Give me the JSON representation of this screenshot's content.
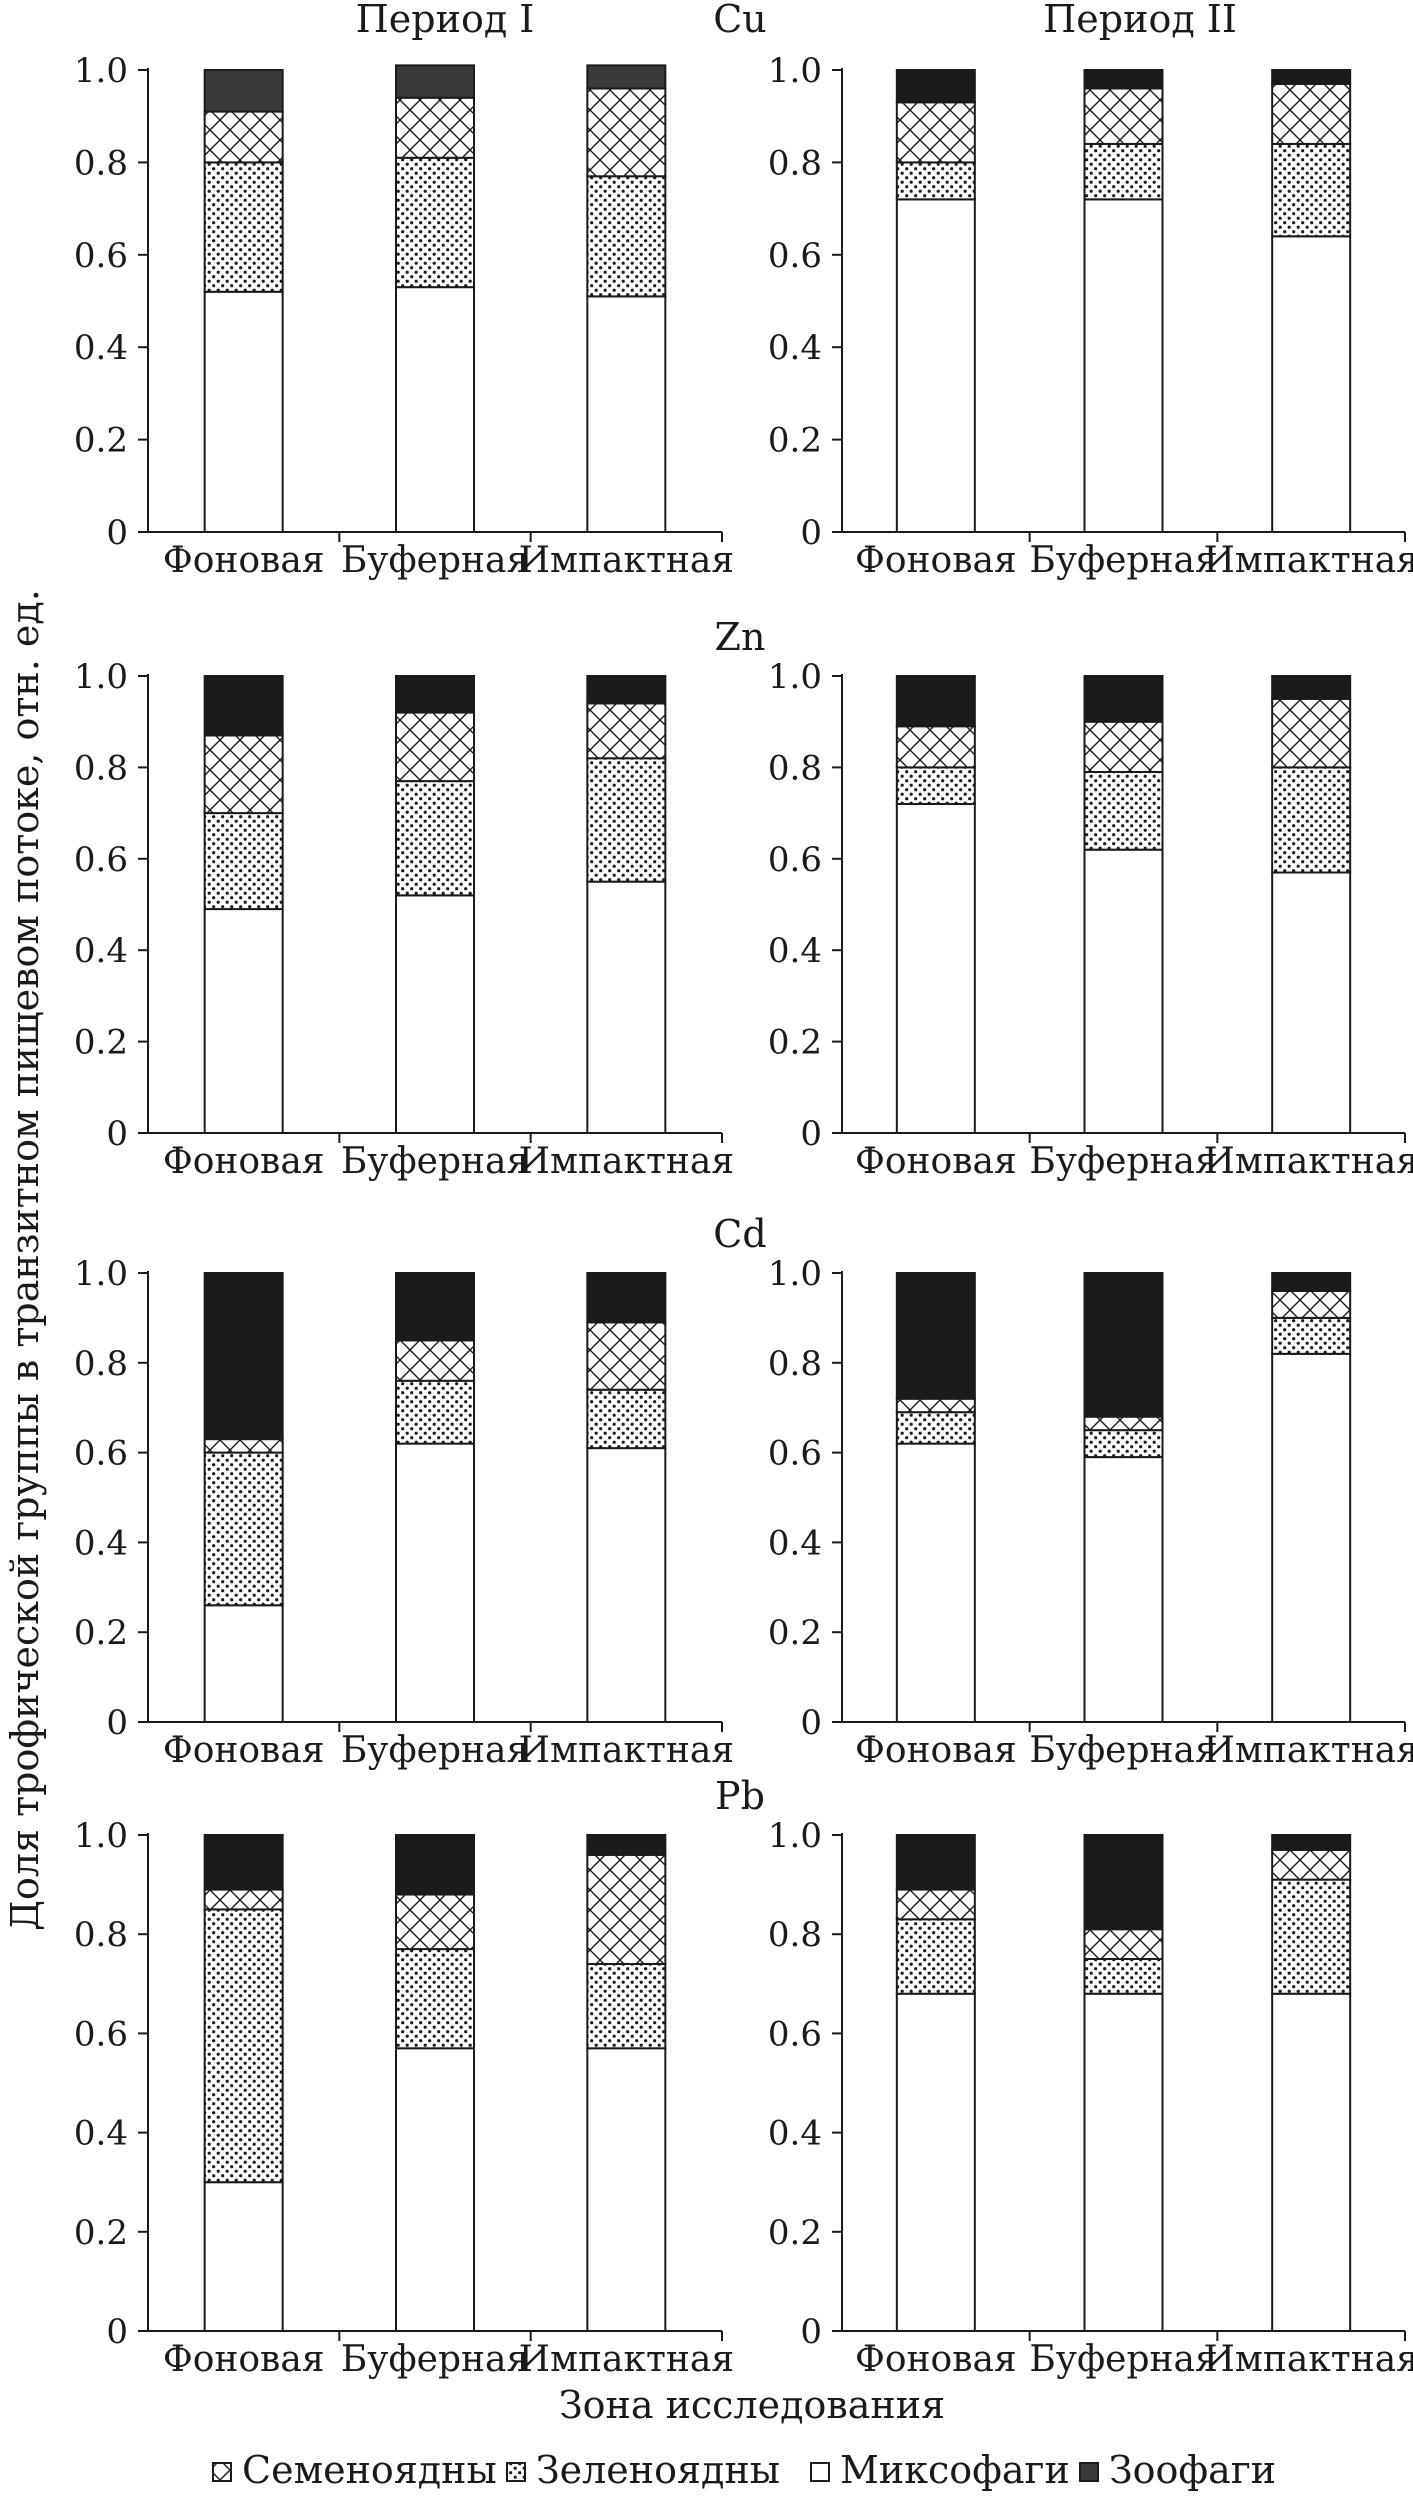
{
  "figure": {
    "period_labels": [
      "Период I",
      "Период II"
    ],
    "y_axis_title": "Доля трофической группы в транзитном пищевом потоке, отн. ед.",
    "x_axis_title": "Зона исследования",
    "legend": [
      {
        "key": "seeds",
        "label": "Семеноядны",
        "pattern": "crosshatch"
      },
      {
        "key": "green",
        "label": "Зеленоядны",
        "pattern": "dots"
      },
      {
        "key": "mixo",
        "label": "Миксофаги",
        "pattern": "white"
      },
      {
        "key": "zoo",
        "label": "Зоофаги",
        "pattern": "dark"
      }
    ],
    "colors": {
      "dark": "#1b1b1b",
      "dark_grey": "#3a3a3a",
      "outline": "#1a1a1a",
      "background": "#ffffff"
    }
  },
  "chart_data": [
    {
      "type": "bar",
      "stacked": true,
      "element": "Cu",
      "period": "Период I",
      "categories": [
        "Фоновая",
        "Буферная",
        "Импактная"
      ],
      "yticks": [
        "0",
        "0.2",
        "0.4",
        "0.6",
        "0.8",
        "1.0"
      ],
      "ylim": [
        0,
        1
      ],
      "series": [
        {
          "name": "Миксофаги",
          "values": [
            0.52,
            0.53,
            0.51
          ]
        },
        {
          "name": "Зеленоядны",
          "values": [
            0.28,
            0.28,
            0.26
          ]
        },
        {
          "name": "Семеноядны",
          "values": [
            0.11,
            0.13,
            0.19
          ]
        },
        {
          "name": "Зоофаги",
          "values": [
            0.09,
            0.07,
            0.05
          ]
        }
      ]
    },
    {
      "type": "bar",
      "stacked": true,
      "element": "Cu",
      "period": "Период II",
      "categories": [
        "Фоновая",
        "Буферная",
        "Импактная"
      ],
      "yticks": [
        "0",
        "0.2",
        "0.4",
        "0.6",
        "0.8",
        "1.0"
      ],
      "ylim": [
        0,
        1
      ],
      "series": [
        {
          "name": "Миксофаги",
          "values": [
            0.72,
            0.72,
            0.64
          ]
        },
        {
          "name": "Зеленоядны",
          "values": [
            0.08,
            0.12,
            0.2
          ]
        },
        {
          "name": "Семеноядны",
          "values": [
            0.13,
            0.12,
            0.13
          ]
        },
        {
          "name": "Зоофаги",
          "values": [
            0.07,
            0.04,
            0.03
          ]
        }
      ]
    },
    {
      "type": "bar",
      "stacked": true,
      "element": "Zn",
      "period": "Период I",
      "categories": [
        "Фоновая",
        "Буферная",
        "Импактная"
      ],
      "yticks": [
        "0",
        "0.2",
        "0.4",
        "0.6",
        "0.8",
        "1.0"
      ],
      "ylim": [
        0,
        1
      ],
      "series": [
        {
          "name": "Миксофаги",
          "values": [
            0.49,
            0.52,
            0.55
          ]
        },
        {
          "name": "Зеленоядны",
          "values": [
            0.21,
            0.25,
            0.27
          ]
        },
        {
          "name": "Семеноядны",
          "values": [
            0.17,
            0.15,
            0.12
          ]
        },
        {
          "name": "Зоофаги",
          "values": [
            0.13,
            0.08,
            0.06
          ]
        }
      ]
    },
    {
      "type": "bar",
      "stacked": true,
      "element": "Zn",
      "period": "Период II",
      "categories": [
        "Фоновая",
        "Буферная",
        "Импактная"
      ],
      "yticks": [
        "0",
        "0.2",
        "0.4",
        "0.6",
        "0.8",
        "1.0"
      ],
      "ylim": [
        0,
        1
      ],
      "series": [
        {
          "name": "Миксофаги",
          "values": [
            0.72,
            0.62,
            0.57
          ]
        },
        {
          "name": "Зеленоядны",
          "values": [
            0.08,
            0.17,
            0.23
          ]
        },
        {
          "name": "Семеноядны",
          "values": [
            0.09,
            0.11,
            0.15
          ]
        },
        {
          "name": "Зоофаги",
          "values": [
            0.11,
            0.1,
            0.05
          ]
        }
      ]
    },
    {
      "type": "bar",
      "stacked": true,
      "element": "Cd",
      "period": "Период I",
      "categories": [
        "Фоновая",
        "Буферная",
        "Импактная"
      ],
      "yticks": [
        "0",
        "0.2",
        "0.4",
        "0.6",
        "0.8",
        "1.0"
      ],
      "ylim": [
        0,
        1
      ],
      "series": [
        {
          "name": "Миксофаги",
          "values": [
            0.26,
            0.62,
            0.61
          ]
        },
        {
          "name": "Зеленоядны",
          "values": [
            0.34,
            0.14,
            0.13
          ]
        },
        {
          "name": "Семеноядны",
          "values": [
            0.03,
            0.09,
            0.15
          ]
        },
        {
          "name": "Зоофаги",
          "values": [
            0.37,
            0.15,
            0.11
          ]
        }
      ]
    },
    {
      "type": "bar",
      "stacked": true,
      "element": "Cd",
      "period": "Период II",
      "categories": [
        "Фоновая",
        "Буферная",
        "Импактная"
      ],
      "yticks": [
        "0",
        "0.2",
        "0.4",
        "0.6",
        "0.8",
        "1.0"
      ],
      "ylim": [
        0,
        1
      ],
      "series": [
        {
          "name": "Миксофаги",
          "values": [
            0.62,
            0.59,
            0.82
          ]
        },
        {
          "name": "Зеленоядны",
          "values": [
            0.07,
            0.06,
            0.08
          ]
        },
        {
          "name": "Семеноядны",
          "values": [
            0.03,
            0.03,
            0.06
          ]
        },
        {
          "name": "Зоофаги",
          "values": [
            0.28,
            0.32,
            0.04
          ]
        }
      ]
    },
    {
      "type": "bar",
      "stacked": true,
      "element": "Pb",
      "period": "Период I",
      "categories": [
        "Фоновая",
        "Буферная",
        "Импактная"
      ],
      "yticks": [
        "0",
        "0.2",
        "0.4",
        "0.6",
        "0.8",
        "1.0"
      ],
      "ylim": [
        0,
        1
      ],
      "series": [
        {
          "name": "Миксофаги",
          "values": [
            0.3,
            0.57,
            0.57
          ]
        },
        {
          "name": "Зеленоядны",
          "values": [
            0.55,
            0.2,
            0.17
          ]
        },
        {
          "name": "Семеноядны",
          "values": [
            0.04,
            0.11,
            0.22
          ]
        },
        {
          "name": "Зоофаги",
          "values": [
            0.11,
            0.12,
            0.04
          ]
        }
      ]
    },
    {
      "type": "bar",
      "stacked": true,
      "element": "Pb",
      "period": "Период II",
      "categories": [
        "Фоновая",
        "Буферная",
        "Импактная"
      ],
      "yticks": [
        "0",
        "0.2",
        "0.4",
        "0.6",
        "0.8",
        "1.0"
      ],
      "ylim": [
        0,
        1
      ],
      "series": [
        {
          "name": "Миксофаги",
          "values": [
            0.68,
            0.68,
            0.68
          ]
        },
        {
          "name": "Зеленоядны",
          "values": [
            0.15,
            0.07,
            0.23
          ]
        },
        {
          "name": "Семеноядны",
          "values": [
            0.06,
            0.06,
            0.06
          ]
        },
        {
          "name": "Зоофаги",
          "values": [
            0.11,
            0.19,
            0.03
          ]
        }
      ]
    }
  ]
}
